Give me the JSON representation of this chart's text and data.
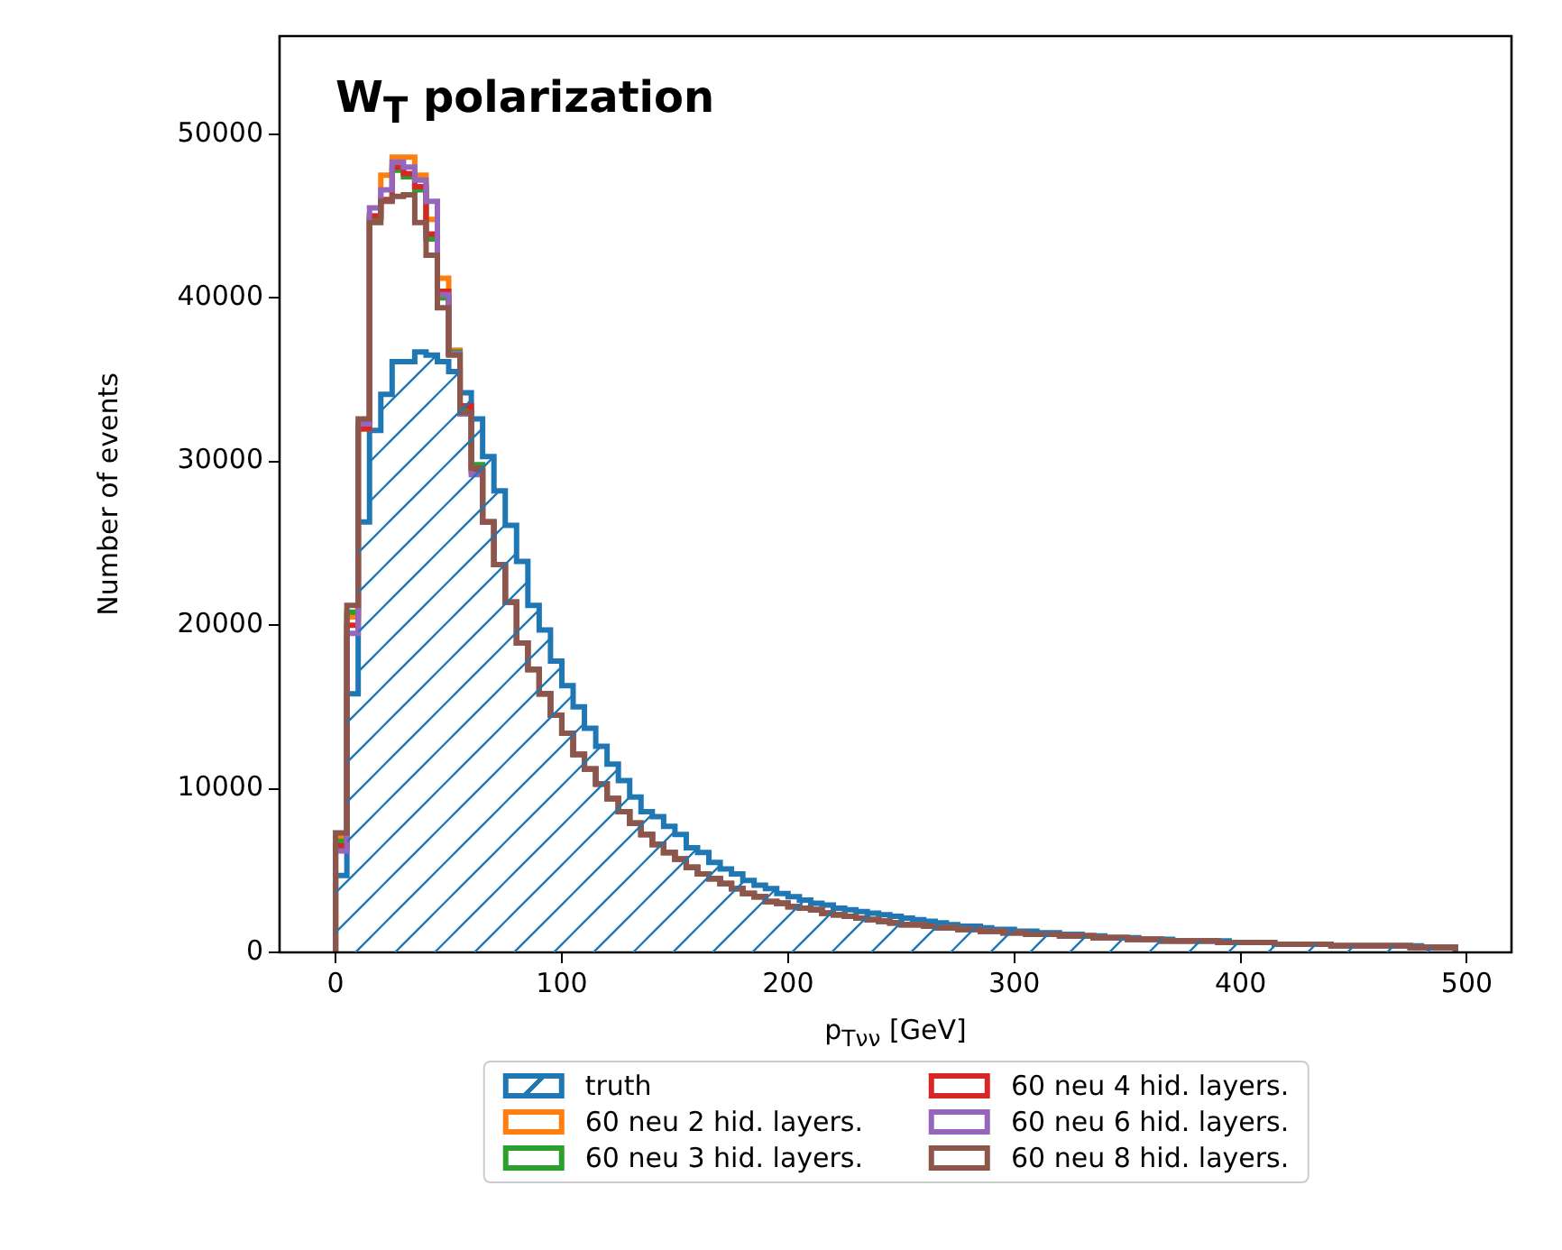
{
  "chart_data": {
    "type": "histogram",
    "title": "W$_{T}$ polarization",
    "xlabel": "p$_{Tνν}$ [GeV]",
    "ylabel": "Number of events",
    "bins": [
      0,
      5,
      10,
      15,
      20,
      25,
      30,
      35,
      40,
      45,
      50,
      55,
      60,
      65,
      70,
      75,
      80,
      85,
      90,
      95,
      100,
      105,
      110,
      115,
      120,
      125,
      130,
      135,
      140,
      145,
      150,
      155,
      160,
      165,
      170,
      175,
      180,
      185,
      190,
      195,
      200,
      205,
      210,
      215,
      220,
      225,
      230,
      235,
      240,
      245,
      250,
      255,
      260,
      265,
      270,
      275,
      280,
      285,
      290,
      295,
      300,
      305,
      310,
      315,
      320,
      325,
      330,
      335,
      340,
      345,
      350,
      355,
      360,
      365,
      370,
      375,
      380,
      385,
      390,
      395,
      400,
      405,
      410,
      415,
      420,
      425,
      430,
      435,
      440,
      445,
      450,
      455,
      460,
      465,
      470,
      475,
      480,
      485,
      490,
      495
    ],
    "series": [
      {
        "name": "truth",
        "color": "#1f77b4",
        "values": [
          4700,
          15800,
          26300,
          31900,
          34100,
          36100,
          36100,
          36700,
          36500,
          36100,
          35500,
          34200,
          32600,
          30300,
          28200,
          26100,
          23900,
          21200,
          19700,
          17800,
          16300,
          15000,
          13700,
          12600,
          11500,
          10500,
          9500,
          8600,
          8300,
          7700,
          7200,
          6400,
          6100,
          5500,
          5100,
          4800,
          4400,
          4100,
          3900,
          3600,
          3400,
          3200,
          3000,
          2900,
          2700,
          2600,
          2500,
          2400,
          2300,
          2200,
          2100,
          2000,
          1900,
          1800,
          1700,
          1600,
          1600,
          1500,
          1400,
          1400,
          1300,
          1300,
          1200,
          1200,
          1100,
          1100,
          1000,
          1000,
          900,
          900,
          900,
          800,
          800,
          800,
          700,
          700,
          700,
          700,
          700,
          600,
          600,
          600,
          600,
          500,
          500,
          500,
          500,
          500,
          400,
          400,
          400,
          400,
          400,
          400,
          400,
          400,
          300,
          300,
          300
        ]
      },
      {
        "name": "60 neu 2 hid. layers.",
        "color": "#ff7f0e",
        "values": [
          7000,
          20500,
          32000,
          45000,
          47500,
          48600,
          48600,
          47500,
          44800,
          41200,
          36800,
          33200,
          29400,
          26300,
          23700,
          21400,
          18900,
          17300,
          15800,
          14500,
          13400,
          12100,
          11200,
          10300,
          9400,
          8600,
          7900,
          7200,
          6600,
          6100,
          5700,
          5200,
          4800,
          4500,
          4200,
          3900,
          3600,
          3400,
          3100,
          3000,
          2800,
          2700,
          2600,
          2400,
          2300,
          2200,
          2100,
          2000,
          1900,
          1800,
          1700,
          1700,
          1600,
          1500,
          1500,
          1400,
          1400,
          1300,
          1300,
          1200,
          1200,
          1100,
          1100,
          1100,
          1000,
          1000,
          1000,
          900,
          900,
          900,
          800,
          800,
          800,
          700,
          700,
          700,
          700,
          700,
          600,
          600,
          600,
          600,
          600,
          500,
          500,
          500,
          500,
          500,
          400,
          400,
          400,
          400,
          400,
          400,
          400,
          300,
          300,
          300,
          300
        ]
      },
      {
        "name": "60 neu 3 hid. layers.",
        "color": "#2ca02c",
        "values": [
          6800,
          20800,
          32300,
          44800,
          46000,
          47800,
          47400,
          46600,
          43600,
          40000,
          36700,
          33100,
          29800,
          26300,
          23700,
          21400,
          18900,
          17300,
          15800,
          14500,
          13400,
          12100,
          11200,
          10300,
          9400,
          8600,
          7900,
          7200,
          6600,
          6100,
          5700,
          5200,
          4800,
          4500,
          4200,
          3900,
          3600,
          3400,
          3100,
          3000,
          2800,
          2700,
          2600,
          2400,
          2300,
          2200,
          2100,
          2000,
          1900,
          1800,
          1700,
          1700,
          1600,
          1500,
          1500,
          1400,
          1400,
          1300,
          1300,
          1200,
          1200,
          1100,
          1100,
          1100,
          1000,
          1000,
          1000,
          900,
          900,
          900,
          800,
          800,
          800,
          700,
          700,
          700,
          700,
          700,
          600,
          600,
          600,
          600,
          600,
          500,
          500,
          500,
          500,
          500,
          400,
          400,
          400,
          400,
          400,
          400,
          400,
          300,
          300,
          300,
          300
        ]
      },
      {
        "name": "60 neu 4 hid. layers.",
        "color": "#d62728",
        "values": [
          6500,
          20000,
          32000,
          45000,
          46000,
          48000,
          47600,
          46800,
          43900,
          40400,
          36600,
          33400,
          29500,
          26300,
          23700,
          21400,
          18900,
          17300,
          15800,
          14500,
          13400,
          12100,
          11200,
          10300,
          9400,
          8600,
          7900,
          7200,
          6600,
          6100,
          5700,
          5200,
          4800,
          4500,
          4200,
          3900,
          3600,
          3400,
          3100,
          3000,
          2800,
          2700,
          2600,
          2400,
          2300,
          2200,
          2100,
          2000,
          1900,
          1800,
          1700,
          1700,
          1600,
          1500,
          1500,
          1400,
          1400,
          1300,
          1300,
          1200,
          1200,
          1100,
          1100,
          1100,
          1000,
          1000,
          1000,
          900,
          900,
          900,
          800,
          800,
          800,
          700,
          700,
          700,
          700,
          700,
          600,
          600,
          600,
          600,
          600,
          500,
          500,
          500,
          500,
          500,
          400,
          400,
          400,
          400,
          400,
          400,
          400,
          300,
          300,
          300,
          300
        ]
      },
      {
        "name": "60 neu 6 hid. layers.",
        "color": "#9467bd",
        "values": [
          6200,
          19500,
          32300,
          45500,
          46600,
          48300,
          48000,
          47200,
          45900,
          40200,
          36600,
          32900,
          29200,
          26300,
          23700,
          21400,
          18900,
          17300,
          15800,
          14500,
          13400,
          12100,
          11200,
          10300,
          9400,
          8600,
          7900,
          7200,
          6600,
          6100,
          5700,
          5200,
          4800,
          4500,
          4200,
          3900,
          3600,
          3400,
          3100,
          3000,
          2800,
          2700,
          2600,
          2400,
          2300,
          2200,
          2100,
          2000,
          1900,
          1800,
          1700,
          1700,
          1600,
          1500,
          1500,
          1400,
          1400,
          1300,
          1300,
          1200,
          1200,
          1100,
          1100,
          1100,
          1000,
          1000,
          1000,
          900,
          900,
          900,
          800,
          800,
          800,
          700,
          700,
          700,
          700,
          700,
          600,
          600,
          600,
          600,
          600,
          500,
          500,
          500,
          500,
          500,
          400,
          400,
          400,
          400,
          400,
          400,
          400,
          300,
          300,
          300,
          300
        ]
      },
      {
        "name": "60 neu 8 hid. layers.",
        "color": "#8c564b",
        "values": [
          7300,
          21200,
          32600,
          44600,
          45900,
          46200,
          46300,
          44600,
          42600,
          39400,
          36500,
          33000,
          29600,
          26300,
          23700,
          21400,
          18900,
          17300,
          15800,
          14500,
          13400,
          12100,
          11200,
          10300,
          9400,
          8600,
          7900,
          7200,
          6600,
          6100,
          5700,
          5200,
          4800,
          4500,
          4200,
          3900,
          3600,
          3400,
          3100,
          3000,
          2800,
          2700,
          2600,
          2400,
          2300,
          2200,
          2100,
          2000,
          1900,
          1800,
          1700,
          1700,
          1600,
          1500,
          1500,
          1400,
          1400,
          1300,
          1300,
          1200,
          1200,
          1100,
          1100,
          1100,
          1000,
          1000,
          1000,
          900,
          900,
          900,
          800,
          800,
          800,
          700,
          700,
          700,
          700,
          700,
          600,
          600,
          600,
          600,
          600,
          500,
          500,
          500,
          500,
          500,
          400,
          400,
          400,
          400,
          400,
          400,
          400,
          300,
          300,
          300,
          300
        ]
      }
    ],
    "xlim": [
      -24.75,
      519.75
    ],
    "ylim": [
      0,
      56000
    ],
    "xticks": [
      0,
      100,
      200,
      300,
      400,
      500
    ],
    "yticks": [
      0,
      10000,
      20000,
      30000,
      40000,
      50000
    ],
    "grid": false,
    "legend": "bottom"
  }
}
